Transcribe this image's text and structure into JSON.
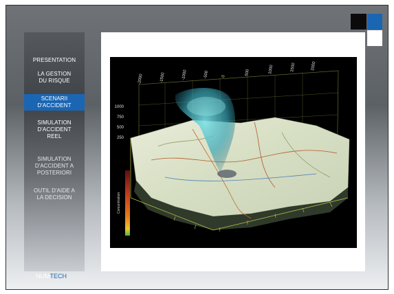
{
  "sidebar": {
    "items": [
      {
        "label": [
          "PRESENTATION"
        ],
        "active": false
      },
      {
        "label": [
          "LA GESTION",
          "DU RISQUE"
        ],
        "active": false
      },
      {
        "label": [
          "SCENARII",
          "D'ACCIDENT"
        ],
        "active": true
      },
      {
        "label": [
          "SIMULATION",
          "D'ACCIDENT",
          "REEL"
        ],
        "active": false
      },
      {
        "label": [
          "SIMULATION",
          "D'ACCIDENT A",
          "POSTERIORI"
        ],
        "active": false
      },
      {
        "label": [
          "OUTIL D'AIDE A",
          "LA DECISION"
        ],
        "active": false
      }
    ]
  },
  "logo": {
    "part1": "NUM",
    "part2": "TECH"
  },
  "figure": {
    "top_axis_ticks": [
      "-2000",
      "-1500",
      "-1000",
      "-500",
      "0",
      "500",
      "1000",
      "1500",
      "2000"
    ],
    "z_axis_ticks": [
      "1000",
      "750",
      "500",
      "250"
    ],
    "colorbar_title": "Concentration"
  },
  "colors": {
    "accent": "#1a66b3",
    "active_nav": "#1a66b3"
  }
}
